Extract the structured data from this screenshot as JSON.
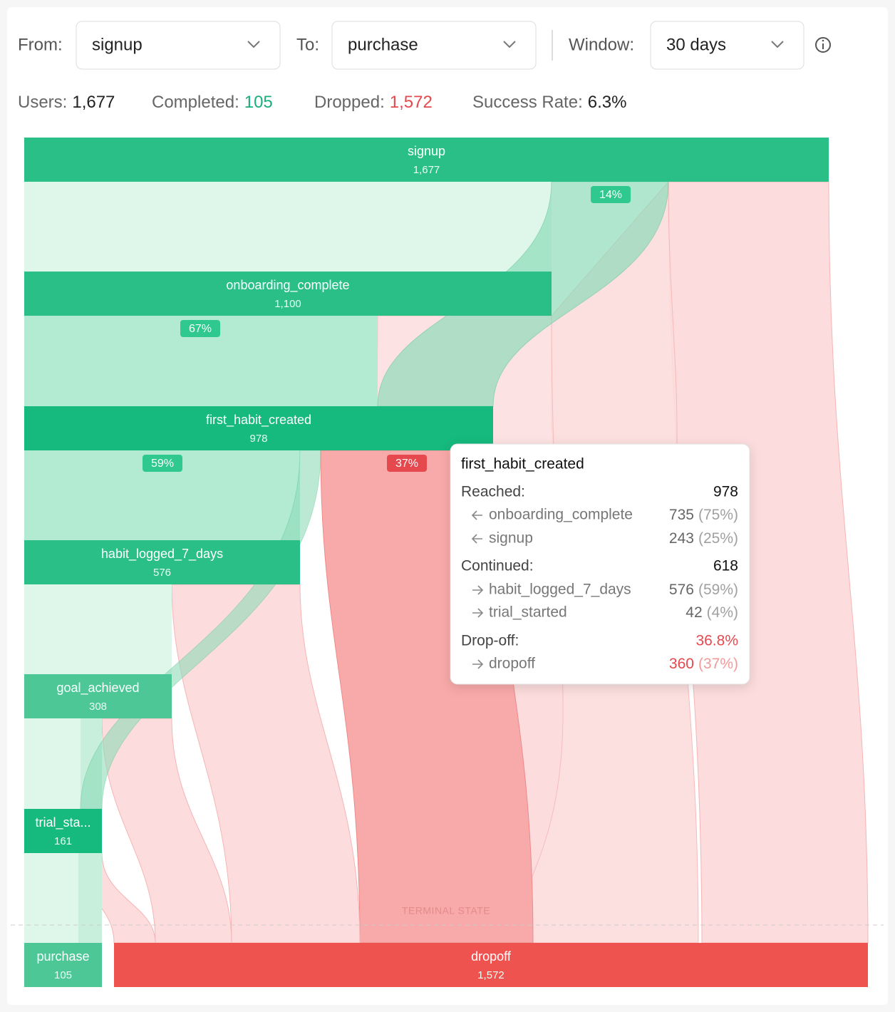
{
  "controls": [
    {
      "label": "From:",
      "value": "signup"
    },
    {
      "label": "To:",
      "value": "purchase"
    },
    {
      "label": "Window:",
      "value": "30 days"
    }
  ],
  "stats": [
    {
      "label": "Users:",
      "value": "1,677"
    },
    {
      "label": "Completed:",
      "value": "105"
    },
    {
      "label": "Dropped:",
      "value": "1,572"
    },
    {
      "label": "Success Rate:",
      "value": "6.3%"
    }
  ],
  "nodes": [
    {
      "label": "signup",
      "count": "1,677"
    },
    {
      "label": "onboarding_complete",
      "count": "1,100"
    },
    {
      "label": "first_habit_created",
      "count": "978"
    },
    {
      "label": "habit_logged_7_days",
      "count": "576"
    },
    {
      "label": "goal_achieved",
      "count": "308"
    },
    {
      "label": "trial_sta...",
      "count": "161"
    },
    {
      "label": "purchase",
      "count": "105"
    },
    {
      "label": "dropoff",
      "count": "1,572"
    }
  ],
  "flow_labels": [
    "14%",
    "67%",
    "59%",
    "37%"
  ],
  "terminal_label": "TERMINAL STATE",
  "tooltip": {
    "title": "first_habit_created",
    "sections": [
      {
        "label": "Reached:",
        "value": "978",
        "rows": [
          {
            "label": "onboarding_complete",
            "count": "735",
            "share": "(75%)"
          },
          {
            "label": "signup",
            "count": "243",
            "share": "(25%)"
          }
        ]
      },
      {
        "label": "Continued:",
        "value": "618",
        "rows": [
          {
            "label": "habit_logged_7_days",
            "count": "576",
            "share": "(59%)"
          },
          {
            "label": "trial_started",
            "count": "42",
            "share": "(4%)"
          }
        ]
      },
      {
        "label": "Drop-off:",
        "value": "36.8%",
        "rows": [
          {
            "label": "dropoff",
            "count": "360",
            "share": "(37%)"
          }
        ]
      }
    ]
  }
}
